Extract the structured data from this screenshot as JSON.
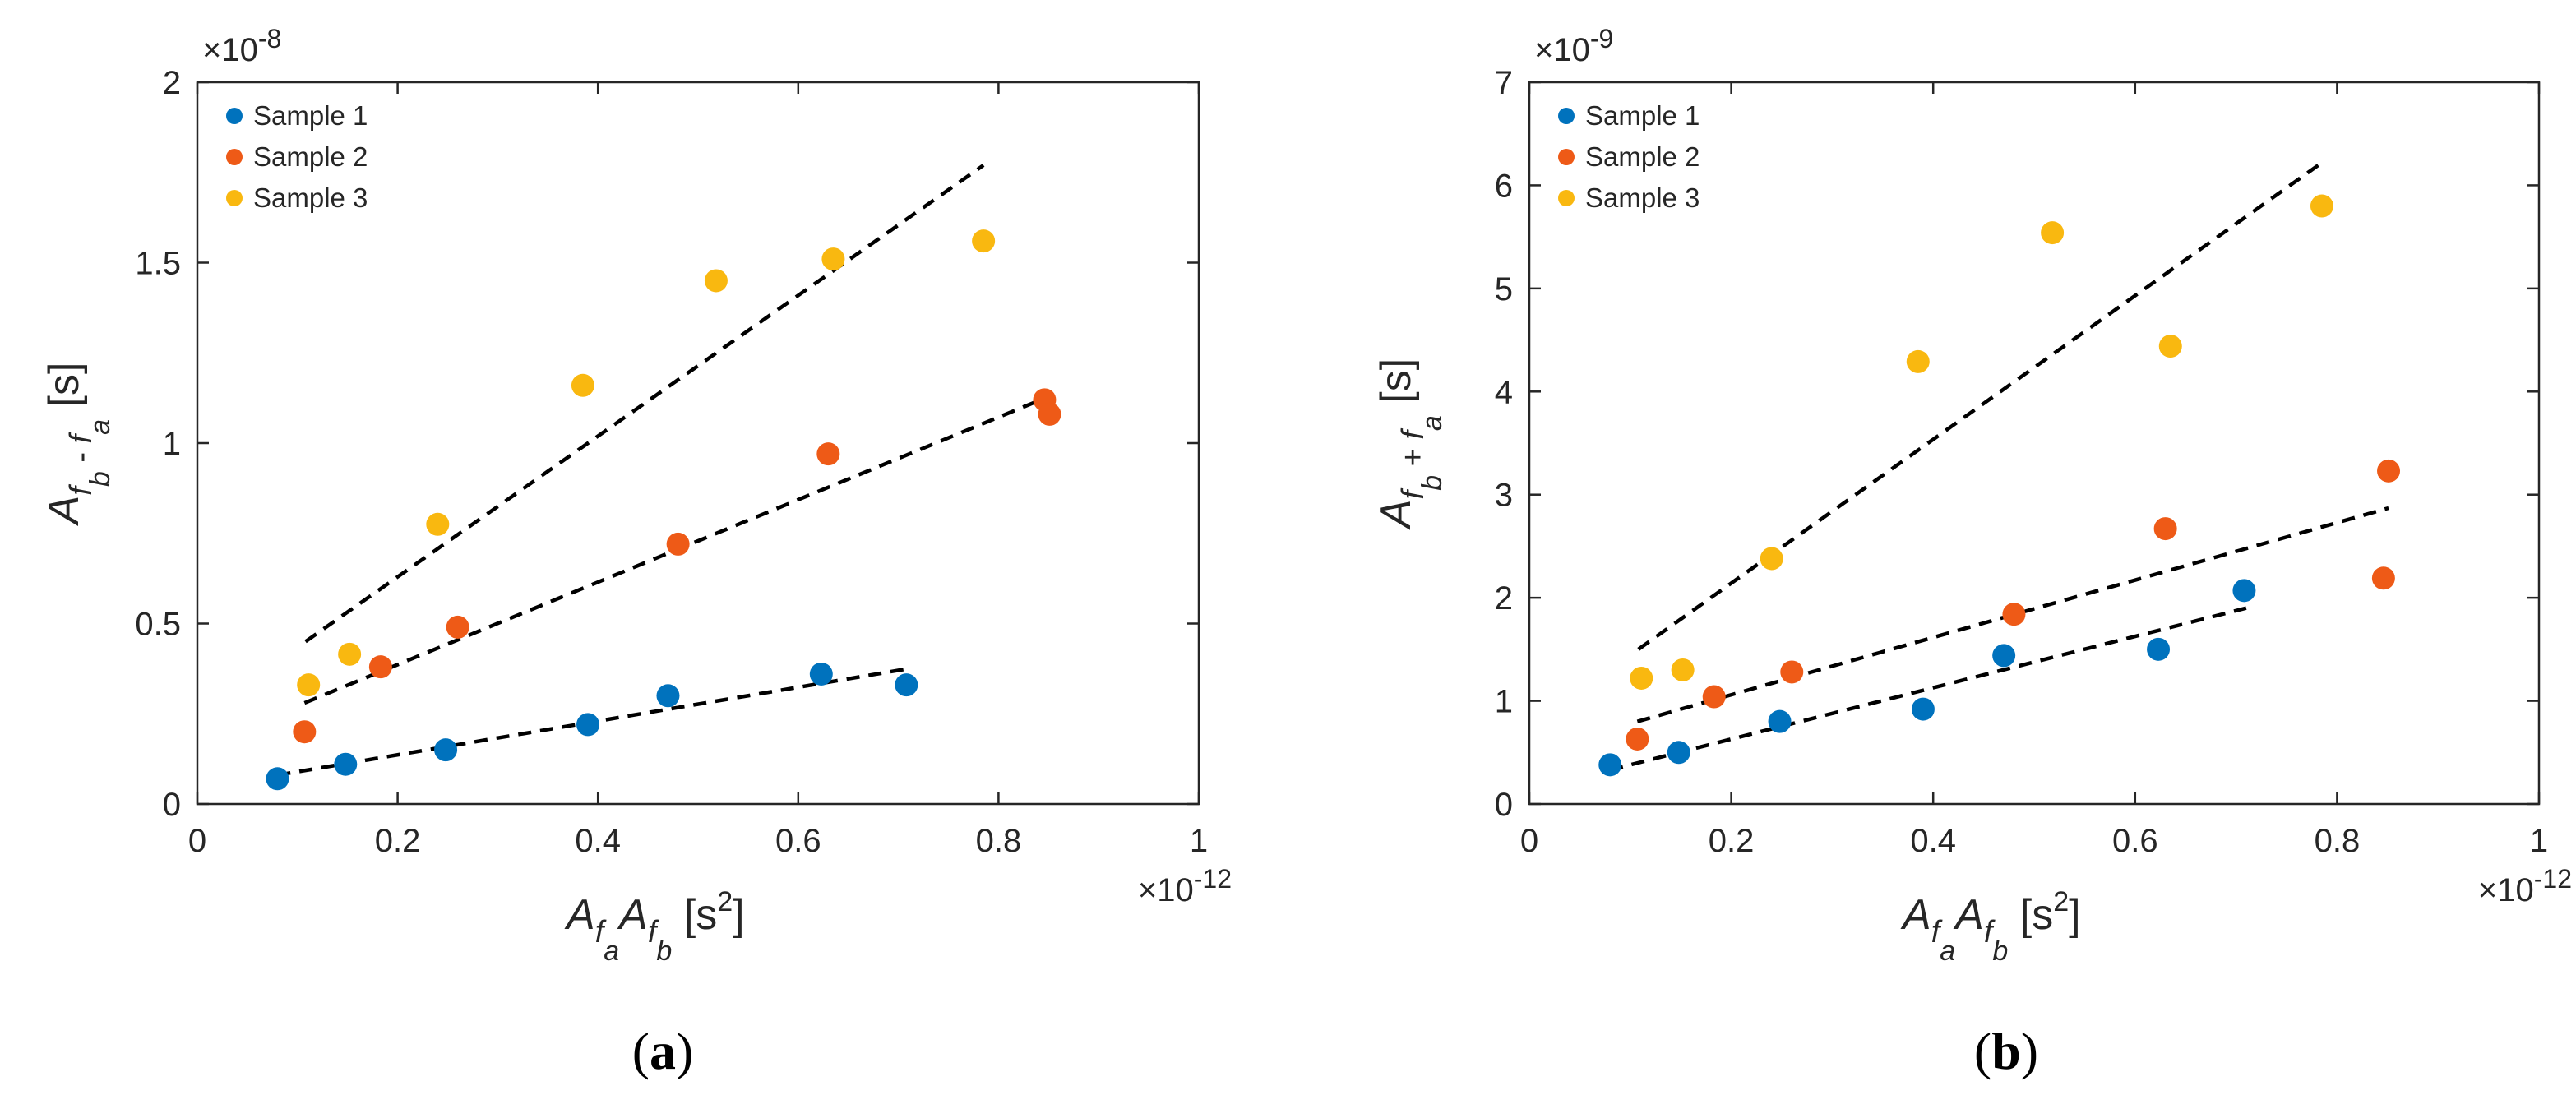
{
  "colors": {
    "sample1": "#0072BD",
    "sample2": "#EE5A17",
    "sample3": "#F9B810",
    "fit": "#000000",
    "axis": "#262626"
  },
  "chart_data": [
    {
      "id": "a",
      "type": "scatter",
      "caption": "a",
      "xlabel": {
        "main": "A",
        "sub1": "f",
        "sub1b": "a",
        "main2": "A",
        "sub2": "f",
        "sub2b": "b",
        "unit": " [s",
        "sup": "2",
        "close": "]"
      },
      "ylabel": {
        "main": "A",
        "sub": "f",
        "subsub1": "b",
        "op": " - ",
        "sub2": "f",
        "subsub2": "a",
        "unit": " [s]"
      },
      "x_exponent": {
        "base": "×10",
        "power": "-12"
      },
      "y_exponent": {
        "base": "×10",
        "power": "-8"
      },
      "xlim": [
        0,
        1
      ],
      "ylim": [
        0,
        2
      ],
      "xticks": [
        0,
        0.2,
        0.4,
        0.6,
        0.8,
        1
      ],
      "xtick_labels": [
        "0",
        "0.2",
        "0.4",
        "0.6",
        "0.8",
        "1"
      ],
      "yticks": [
        0,
        0.5,
        1,
        1.5,
        2
      ],
      "ytick_labels": [
        "0",
        "0.5",
        "1",
        "1.5",
        "2"
      ],
      "legend_position": "top-left",
      "series": [
        {
          "name": "Sample 1",
          "color_key": "sample1",
          "x": [
            0.08,
            0.148,
            0.248,
            0.39,
            0.47,
            0.623,
            0.708
          ],
          "y": [
            0.07,
            0.11,
            0.15,
            0.22,
            0.3,
            0.36,
            0.33
          ],
          "fit": {
            "x": [
              0.08,
              0.71
            ],
            "y": [
              0.08,
              0.375
            ]
          }
        },
        {
          "name": "Sample 2",
          "color_key": "sample2",
          "x": [
            0.107,
            0.183,
            0.26,
            0.48,
            0.63,
            0.846,
            0.851
          ],
          "y": [
            0.2,
            0.38,
            0.49,
            0.72,
            0.97,
            1.12,
            1.08
          ],
          "fit": {
            "x": [
              0.107,
              0.851
            ],
            "y": [
              0.28,
              1.13
            ]
          }
        },
        {
          "name": "Sample 3",
          "color_key": "sample3",
          "x": [
            0.111,
            0.152,
            0.24,
            0.385,
            0.518,
            0.635,
            0.785
          ],
          "y": [
            0.33,
            0.415,
            0.775,
            1.16,
            1.45,
            1.51,
            1.56
          ],
          "fit": {
            "x": [
              0.108,
              0.785
            ],
            "y": [
              0.45,
              1.77
            ]
          }
        }
      ]
    },
    {
      "id": "b",
      "type": "scatter",
      "caption": "b",
      "xlabel": {
        "main": "A",
        "sub1": "f",
        "sub1b": "a",
        "main2": "A",
        "sub2": "f",
        "sub2b": "b",
        "unit": " [s",
        "sup": "2",
        "close": "]"
      },
      "ylabel": {
        "main": "A",
        "sub": "f",
        "subsub1": "b",
        "op": " + ",
        "sub2": "f",
        "subsub2": "a",
        "unit": " [s]"
      },
      "x_exponent": {
        "base": "×10",
        "power": "-12"
      },
      "y_exponent": {
        "base": "×10",
        "power": "-9"
      },
      "xlim": [
        0,
        1
      ],
      "ylim": [
        0,
        7
      ],
      "xticks": [
        0,
        0.2,
        0.4,
        0.6,
        0.8,
        1
      ],
      "xtick_labels": [
        "0",
        "0.2",
        "0.4",
        "0.6",
        "0.8",
        "1"
      ],
      "yticks": [
        0,
        1,
        2,
        3,
        4,
        5,
        6,
        7
      ],
      "ytick_labels": [
        "0",
        "1",
        "2",
        "3",
        "4",
        "5",
        "6",
        "7"
      ],
      "legend_position": "top-left",
      "series": [
        {
          "name": "Sample 1",
          "color_key": "sample1",
          "x": [
            0.08,
            0.148,
            0.248,
            0.39,
            0.47,
            0.623,
            0.708
          ],
          "y": [
            0.38,
            0.5,
            0.8,
            0.92,
            1.44,
            1.5,
            2.07
          ],
          "fit": {
            "x": [
              0.08,
              0.71
            ],
            "y": [
              0.33,
              1.9
            ]
          }
        },
        {
          "name": "Sample 2",
          "color_key": "sample2",
          "x": [
            0.107,
            0.183,
            0.26,
            0.48,
            0.63,
            0.846,
            0.851
          ],
          "y": [
            0.63,
            1.04,
            1.28,
            1.84,
            2.67,
            2.19,
            3.23
          ],
          "fit": {
            "x": [
              0.107,
              0.851
            ],
            "y": [
              0.8,
              2.87
            ]
          }
        },
        {
          "name": "Sample 3",
          "color_key": "sample3",
          "x": [
            0.111,
            0.152,
            0.24,
            0.385,
            0.518,
            0.635,
            0.785
          ],
          "y": [
            1.22,
            1.3,
            2.38,
            4.29,
            5.54,
            4.44,
            5.8
          ],
          "fit": {
            "x": [
              0.108,
              0.785
            ],
            "y": [
              1.5,
              6.22
            ]
          }
        }
      ]
    }
  ]
}
